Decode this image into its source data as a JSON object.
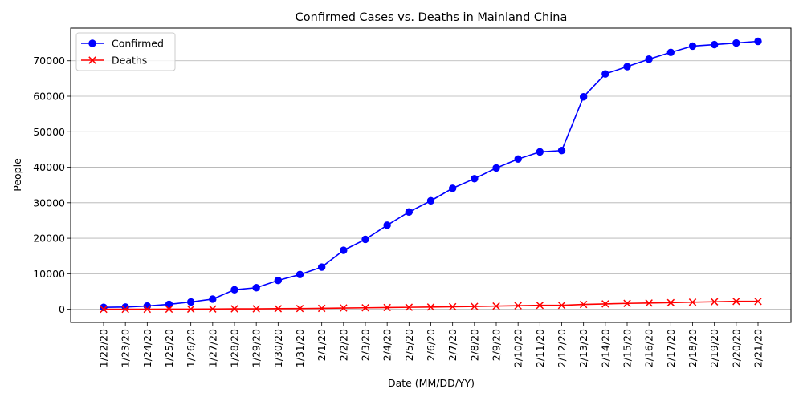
{
  "chart_data": {
    "type": "line",
    "title": "Confirmed Cases vs. Deaths in Mainland China",
    "xlabel": "Date (MM/DD/YY)",
    "ylabel": "People",
    "categories": [
      "1/22/20",
      "1/23/20",
      "1/24/20",
      "1/25/20",
      "1/26/20",
      "1/27/20",
      "1/28/20",
      "1/29/20",
      "1/30/20",
      "1/31/20",
      "2/1/20",
      "2/2/20",
      "2/3/20",
      "2/4/20",
      "2/5/20",
      "2/6/20",
      "2/7/20",
      "2/8/20",
      "2/9/20",
      "2/10/20",
      "2/11/20",
      "2/12/20",
      "2/13/20",
      "2/14/20",
      "2/15/20",
      "2/16/20",
      "2/17/20",
      "2/18/20",
      "2/19/20",
      "2/20/20",
      "2/21/20"
    ],
    "ylim": [
      -3700,
      79200
    ],
    "yticks": [
      0,
      10000,
      20000,
      30000,
      40000,
      50000,
      60000,
      70000
    ],
    "grid": "y-axis",
    "legend_position": "upper-left",
    "series": [
      {
        "name": "Confirmed",
        "color": "#0000ff",
        "marker": "circle",
        "values": [
          547,
          639,
          916,
          1399,
          2062,
          2863,
          5494,
          6070,
          8124,
          9783,
          11871,
          16607,
          19693,
          23680,
          27409,
          30553,
          34075,
          36778,
          39790,
          42306,
          44327,
          44699,
          59832,
          66292,
          68347,
          70446,
          72364,
          74139,
          74546,
          74999,
          75472
        ]
      },
      {
        "name": "Deaths",
        "color": "#ff0000",
        "marker": "x",
        "values": [
          17,
          18,
          26,
          42,
          56,
          82,
          131,
          133,
          171,
          213,
          259,
          361,
          425,
          490,
          562,
          632,
          717,
          804,
          904,
          1011,
          1111,
          1116,
          1368,
          1520,
          1662,
          1765,
          1863,
          2002,
          2114,
          2236,
          2236
        ]
      }
    ]
  }
}
